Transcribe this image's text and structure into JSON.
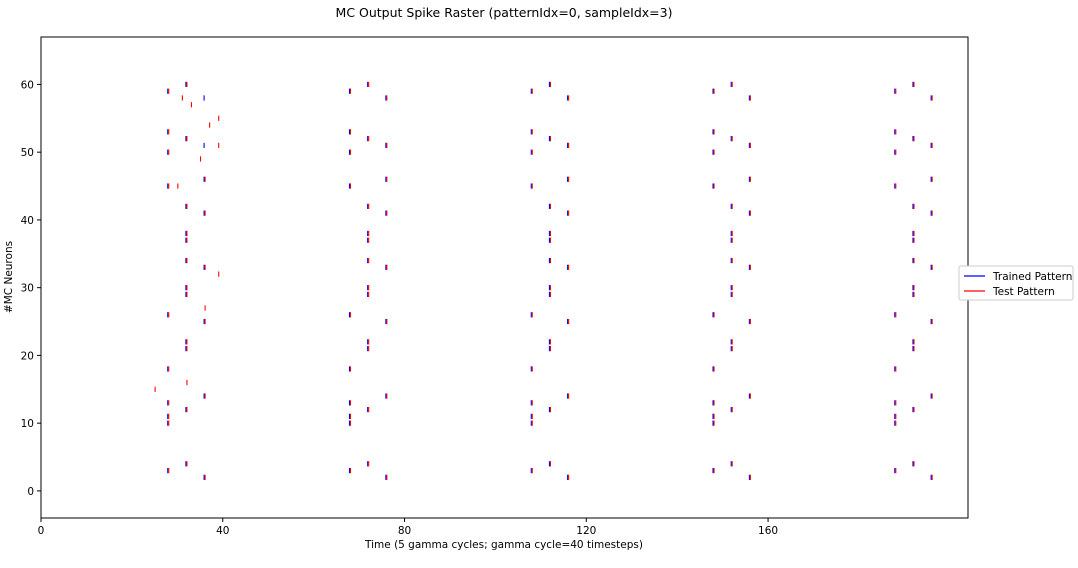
{
  "chart_data": {
    "type": "scatter",
    "title": "MC Output Spike Raster (patternIdx=0, sampleIdx=3)",
    "xlabel": "Time (5 gamma cycles; gamma cycle=40 timesteps)",
    "ylabel": "#MC Neurons",
    "xlim": [
      0,
      204
    ],
    "ylim": [
      -4,
      67
    ],
    "x_ticks": [
      0,
      40,
      80,
      120,
      160
    ],
    "y_ticks": [
      0,
      10,
      20,
      30,
      40,
      50,
      60
    ],
    "marker": "vertical-tick",
    "legend": {
      "placement": "outside-right"
    },
    "series": [
      {
        "name": "Trained Pattern",
        "color": "#0000ff",
        "cycle_period": 40,
        "cycles": 5,
        "points_first_cycle": [
          [
            28,
            3
          ],
          [
            28,
            10
          ],
          [
            28,
            11
          ],
          [
            28,
            13
          ],
          [
            28,
            18
          ],
          [
            28,
            26
          ],
          [
            28,
            45
          ],
          [
            28,
            50
          ],
          [
            28,
            53
          ],
          [
            28,
            59
          ],
          [
            32,
            4
          ],
          [
            32,
            12
          ],
          [
            32,
            21
          ],
          [
            32,
            22
          ],
          [
            32,
            29
          ],
          [
            32,
            30
          ],
          [
            32,
            34
          ],
          [
            32,
            37
          ],
          [
            32,
            38
          ],
          [
            32,
            42
          ],
          [
            32,
            52
          ],
          [
            32,
            60
          ],
          [
            36,
            2
          ],
          [
            36,
            14
          ],
          [
            36,
            25
          ],
          [
            36,
            33
          ],
          [
            36,
            41
          ],
          [
            36,
            46
          ],
          [
            36,
            51
          ],
          [
            36,
            58
          ]
        ]
      },
      {
        "name": "Test Pattern",
        "color": "#ff0000",
        "cycle_period": 40,
        "cycles": 5,
        "points_first_cycle": [
          [
            28,
            3
          ],
          [
            28,
            10
          ],
          [
            28,
            11
          ],
          [
            28,
            13
          ],
          [
            28,
            18
          ],
          [
            28,
            26
          ],
          [
            28,
            45
          ],
          [
            28,
            50
          ],
          [
            28,
            53
          ],
          [
            28,
            59
          ],
          [
            32,
            4
          ],
          [
            32,
            12
          ],
          [
            32,
            21
          ],
          [
            32,
            22
          ],
          [
            32,
            29
          ],
          [
            32,
            30
          ],
          [
            32,
            34
          ],
          [
            32,
            37
          ],
          [
            32,
            38
          ],
          [
            32,
            42
          ],
          [
            32,
            52
          ],
          [
            32,
            60
          ],
          [
            36,
            2
          ],
          [
            36,
            14
          ],
          [
            36,
            25
          ],
          [
            36,
            33
          ],
          [
            36,
            41
          ],
          [
            36,
            46
          ],
          [
            25,
            15
          ],
          [
            30,
            45
          ],
          [
            31,
            58
          ],
          [
            32,
            16
          ],
          [
            33,
            57
          ],
          [
            35,
            49
          ],
          [
            36,
            27
          ],
          [
            37,
            54
          ],
          [
            39,
            32
          ],
          [
            39,
            51
          ],
          [
            39,
            55
          ]
        ],
        "points_later_cycles": [
          [
            28,
            3
          ],
          [
            28,
            10
          ],
          [
            28,
            11
          ],
          [
            28,
            13
          ],
          [
            28,
            18
          ],
          [
            28,
            26
          ],
          [
            28,
            45
          ],
          [
            28,
            50
          ],
          [
            28,
            53
          ],
          [
            28,
            59
          ],
          [
            32,
            4
          ],
          [
            32,
            12
          ],
          [
            32,
            21
          ],
          [
            32,
            22
          ],
          [
            32,
            29
          ],
          [
            32,
            30
          ],
          [
            32,
            34
          ],
          [
            32,
            37
          ],
          [
            32,
            38
          ],
          [
            32,
            42
          ],
          [
            32,
            52
          ],
          [
            32,
            60
          ],
          [
            36,
            2
          ],
          [
            36,
            14
          ],
          [
            36,
            25
          ],
          [
            36,
            33
          ],
          [
            36,
            41
          ],
          [
            36,
            46
          ],
          [
            36,
            51
          ],
          [
            36,
            58
          ]
        ]
      }
    ]
  }
}
